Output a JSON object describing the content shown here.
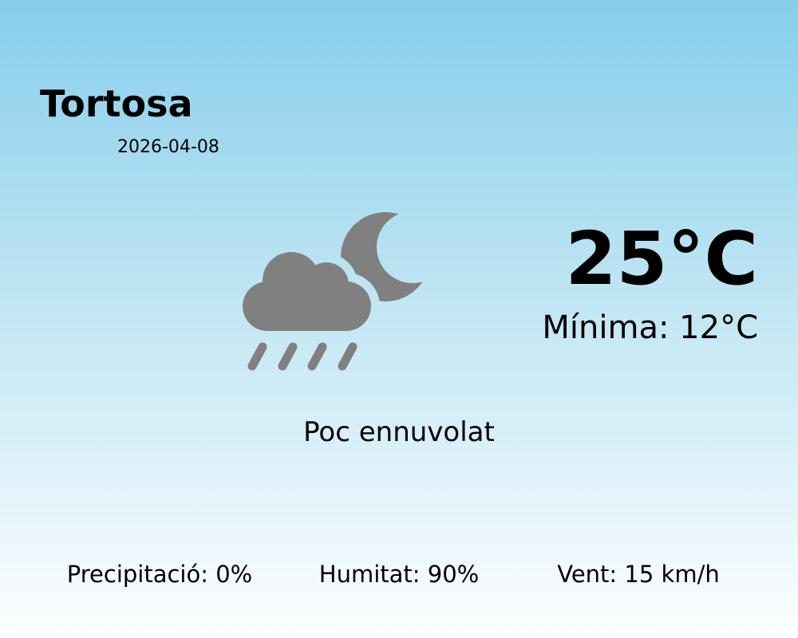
{
  "location": {
    "city": "Tortosa",
    "date": "2026-04-08"
  },
  "weather": {
    "temperature": "25°C",
    "minimum": "Mínima: 12°C",
    "condition": "Poc ennuvolat",
    "icon": "cloud-moon-rain-icon",
    "icon_color": "#808080"
  },
  "stats": {
    "precipitation": "Precipitació: 0%",
    "humidity": "Humitat: 90%",
    "wind": "Vent: 15 km/h"
  },
  "colors": {
    "background_top": "#87ceeb",
    "background_bottom": "#fdfeff"
  }
}
